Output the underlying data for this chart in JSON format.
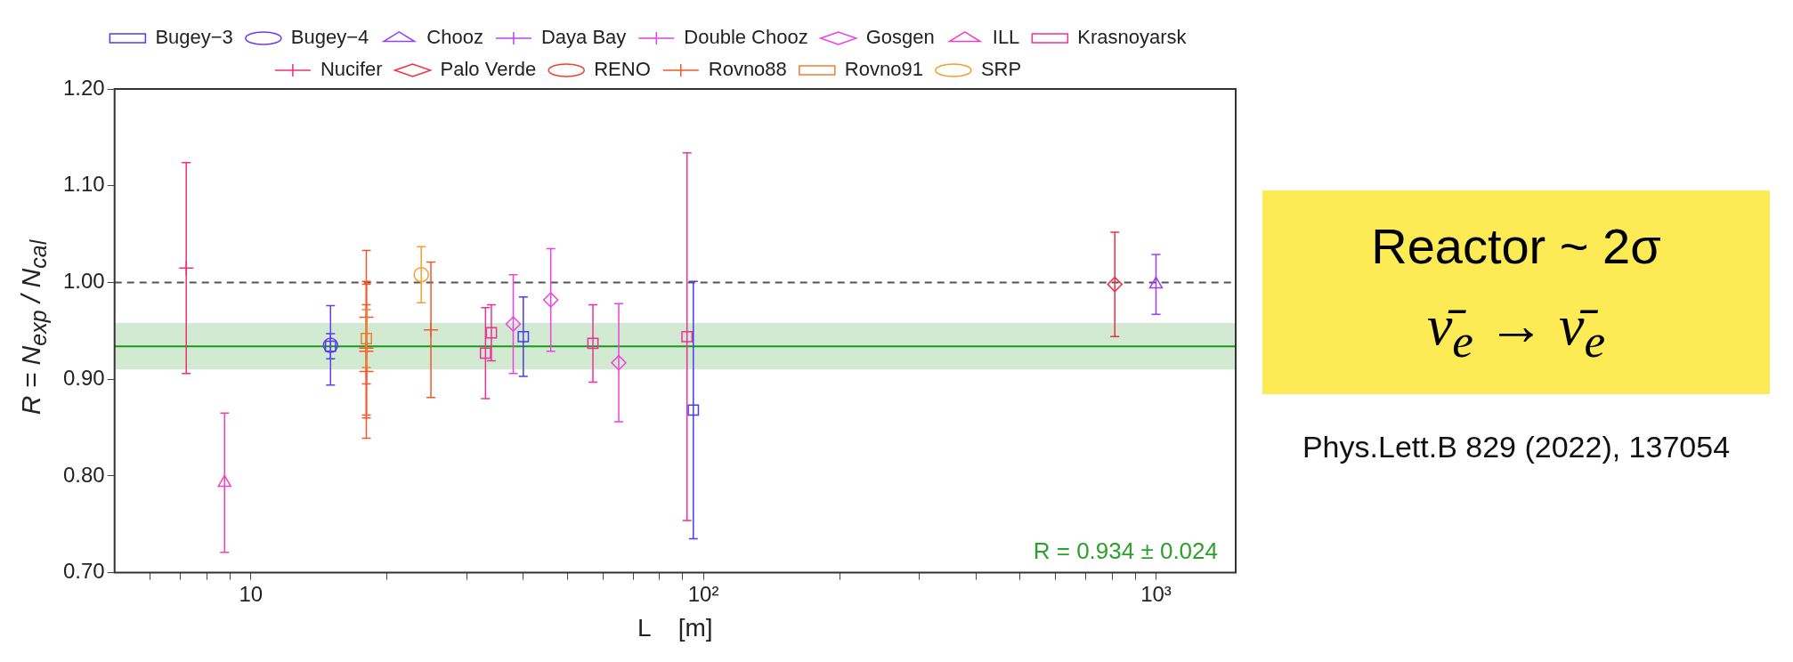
{
  "chart_data": {
    "type": "scatter",
    "xlabel": "L    [m]",
    "ylabel": "R = N$_{exp}$ / N$_{cal}$",
    "log": "x",
    "xlim": [
      5,
      1500
    ],
    "xticks": [
      {
        "value": 6,
        "label": null
      },
      {
        "value": 7,
        "label": null
      },
      {
        "value": 8,
        "label": null
      },
      {
        "value": 9,
        "label": null
      },
      10,
      {
        "value": 20,
        "label": null
      },
      {
        "value": 30,
        "label": null
      },
      {
        "value": 40,
        "label": null
      },
      {
        "value": 50,
        "label": null
      },
      {
        "value": 60,
        "label": null
      },
      {
        "value": 70,
        "label": null
      },
      {
        "value": 80,
        "label": null
      },
      {
        "value": 90,
        "label": null
      },
      {
        "value": 100,
        "label": "10²"
      },
      {
        "value": 200,
        "label": null
      },
      {
        "value": 300,
        "label": null
      },
      {
        "value": 400,
        "label": null
      },
      {
        "value": 500,
        "label": null
      },
      {
        "value": 600,
        "label": null
      },
      {
        "value": 700,
        "label": null
      },
      {
        "value": 800,
        "label": null
      },
      {
        "value": 900,
        "label": null
      },
      {
        "value": 1000,
        "label": "10³"
      }
    ],
    "ylim": [
      0.7,
      1.2
    ],
    "yticks": [
      {
        "value": 0.7,
        "label": "0.70"
      },
      {
        "value": 0.8,
        "label": "0.80"
      },
      {
        "value": 0.9,
        "label": "0.90"
      },
      {
        "value": 1.0,
        "label": "1.00"
      },
      {
        "value": 1.1,
        "label": "1.10"
      },
      {
        "value": 1.2,
        "label": "1.20"
      }
    ],
    "legend": "top",
    "series": [
      {
        "name": "Bugey−3",
        "color": "#4b3cf0",
        "marker": "square",
        "x": [
          15,
          40,
          95
        ],
        "values": [
          0.934,
          0.944,
          0.868
        ],
        "errors": [
          0.013,
          0.041,
          0.133
        ]
      },
      {
        "name": "Bugey−4",
        "color": "#6a3cf0",
        "marker": "circle",
        "x": [
          15
        ],
        "values": [
          0.935
        ],
        "errors": [
          0.041
        ]
      },
      {
        "name": "Chooz",
        "color": "#9a40f0",
        "marker": "triangle",
        "x": [
          1000
        ],
        "values": [
          0.998
        ],
        "errors": [
          0.031
        ]
      },
      {
        "name": "Daya Bay",
        "color": "#c040f0",
        "marker": "cross"
      },
      {
        "name": "Double Chooz",
        "color": "#e040f0",
        "marker": "cross"
      },
      {
        "name": "Gosgen",
        "color": "#f040e0",
        "marker": "diamond",
        "x": [
          38,
          46,
          65
        ],
        "values": [
          0.957,
          0.982,
          0.917
        ],
        "errors": [
          0.051,
          0.053,
          0.061
        ]
      },
      {
        "name": "ILL",
        "color": "#f040c0",
        "marker": "triangle",
        "x": [
          8.75
        ],
        "values": [
          0.793
        ],
        "errors": [
          0.072
        ]
      },
      {
        "name": "Krasnoyarsk",
        "color": "#f0309a",
        "marker": "square",
        "x": [
          33,
          34,
          57,
          92
        ],
        "values": [
          0.927,
          0.948,
          0.937,
          0.944
        ],
        "errors": [
          0.047,
          0.029,
          0.04,
          0.19
        ]
      },
      {
        "name": "Nucifer",
        "color": "#f03070",
        "marker": "cross",
        "x": [
          7.2
        ],
        "values": [
          1.015
        ],
        "errors": [
          0.109
        ]
      },
      {
        "name": "Palo Verde",
        "color": "#f03040",
        "marker": "diamond",
        "x": [
          811
        ],
        "values": [
          0.998
        ],
        "errors": [
          0.054
        ]
      },
      {
        "name": "RENO",
        "color": "#f04030",
        "marker": "circle"
      },
      {
        "name": "Rovno88",
        "color": "#f05a28",
        "marker": "cross",
        "x": [
          18,
          18,
          18,
          18,
          25
        ],
        "values": [
          0.964,
          0.932,
          0.929,
          0.908,
          0.951
        ],
        "errors": [
          0.069,
          0.069,
          0.069,
          0.069,
          0.07
        ]
      },
      {
        "name": "Rovno91",
        "color": "#f08030",
        "marker": "square",
        "x": [
          18
        ],
        "values": [
          0.942
        ],
        "errors": [
          0.03
        ]
      },
      {
        "name": "SRP",
        "color": "#f0a030",
        "marker": "circle",
        "x": [
          23.8
        ],
        "values": [
          1.008
        ],
        "errors": [
          0.029
        ]
      }
    ],
    "ref_lines": [
      {
        "axis": "y",
        "value": 1.0,
        "color": "#555555",
        "line_style": "dashed"
      },
      {
        "axis": "y",
        "value": 0.934,
        "color": "#1a9a1a",
        "line_style": "solid"
      }
    ],
    "bands": [
      {
        "axis": "y",
        "from": 0.91,
        "to": 0.958,
        "label": "R = 0.934 ± 0.024",
        "color": "#2ca02c"
      }
    ],
    "annotations": [
      "Reactor  ~ 2σ",
      "ν̄$_{e}$ → ν̄$_{e}$",
      "Phys.Lett.B 829 (2022), 137054"
    ]
  }
}
